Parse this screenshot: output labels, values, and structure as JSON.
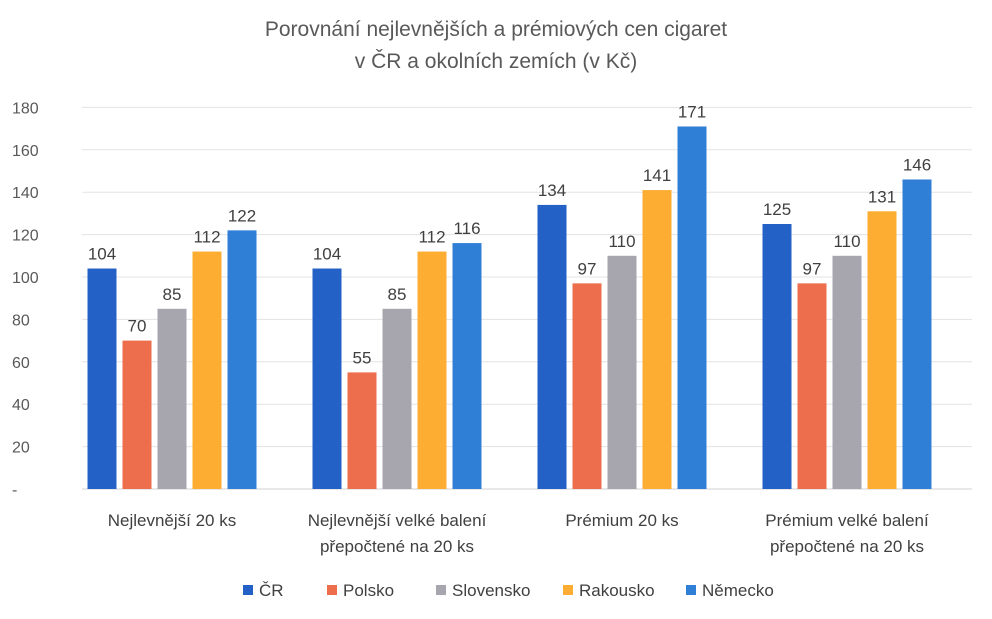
{
  "chart_data": {
    "type": "bar",
    "title_lines": [
      "Porovnání nejlevnějších a prémiových cen cigaret",
      "v ČR a okolních zemích (v Kč)"
    ],
    "categories": [
      [
        "Nejlevnější 20 ks"
      ],
      [
        "Nejlevnější velké balení",
        "přepočtené na 20 ks"
      ],
      [
        "Prémium 20 ks"
      ],
      [
        "Prémium velké balení",
        "přepočtené na 20 ks"
      ]
    ],
    "series": [
      {
        "name": "ČR",
        "color": "#2361c6",
        "values": [
          104,
          104,
          134,
          125
        ]
      },
      {
        "name": "Polsko",
        "color": "#ec6e4d",
        "values": [
          70,
          55,
          97,
          97
        ]
      },
      {
        "name": "Slovensko",
        "color": "#a7a5ad",
        "values": [
          85,
          85,
          110,
          110
        ]
      },
      {
        "name": "Rakousko",
        "color": "#fcad32",
        "values": [
          112,
          112,
          141,
          131
        ]
      },
      {
        "name": "Německo",
        "color": "#2f7fd6",
        "values": [
          122,
          116,
          171,
          146
        ]
      }
    ],
    "y_ticks": [
      "-",
      "20",
      "40",
      "60",
      "80",
      "100",
      "120",
      "140",
      "160",
      "180"
    ],
    "ylim": [
      0,
      180
    ],
    "grid": true,
    "legend_position": "bottom"
  }
}
